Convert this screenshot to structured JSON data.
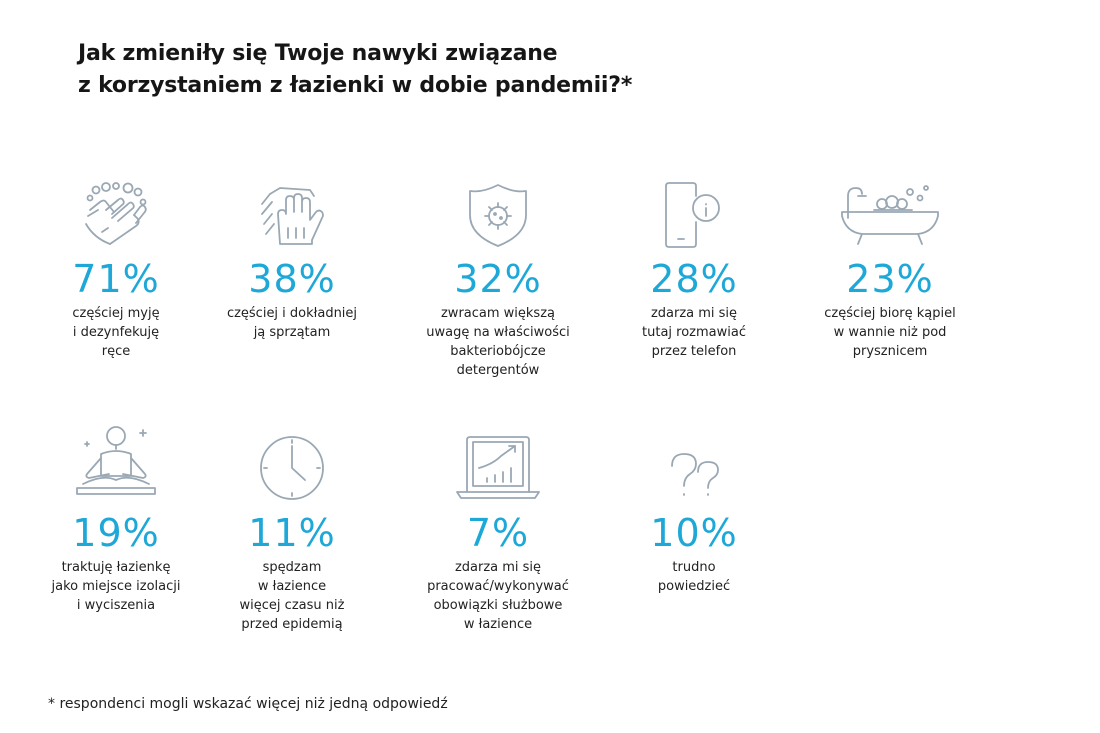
{
  "title": {
    "line1": "Jak zmieniły się Twoje nawyki związane",
    "line2": "z korzystaniem z łazienki w dobie pandemii?*"
  },
  "chart_data": {
    "type": "table",
    "title": "Jak zmieniły się Twoje nawyki związane z korzystaniem z łazienki w dobie pandemii?*",
    "units": "%",
    "items": [
      {
        "icon": "hand-washing-icon",
        "value": "71%",
        "label": [
          "częściej myję",
          "i dezynfekuję",
          "ręce"
        ]
      },
      {
        "icon": "cleaning-glove-icon",
        "value": "38%",
        "label": [
          "częściej i dokładniej",
          "ją sprzątam"
        ]
      },
      {
        "icon": "virus-shield-icon",
        "value": "32%",
        "label": [
          "zwracam większą",
          "uwagę na właściwości",
          "bakteriobójcze",
          "detergentów"
        ]
      },
      {
        "icon": "phone-icon",
        "value": "28%",
        "label": [
          "zdarza mi się",
          "tutaj rozmawiać",
          "przez telefon"
        ]
      },
      {
        "icon": "bathtub-icon",
        "value": "23%",
        "label": [
          "częściej biorę kąpiel",
          "w wannie niż pod",
          "prysznicem"
        ]
      },
      {
        "icon": "meditation-icon",
        "value": "19%",
        "label": [
          "traktuję łazienkę",
          "jako miejsce izolacji",
          "i wyciszenia"
        ]
      },
      {
        "icon": "clock-icon",
        "value": "11%",
        "label": [
          "spędzam",
          "w łazience",
          "więcej czasu niż",
          "przed epidemią"
        ]
      },
      {
        "icon": "laptop-chart-icon",
        "value": "7%",
        "label": [
          "zdarza mi się",
          "pracować/wykonywać",
          "obowiązki służbowe",
          "w łazience"
        ]
      },
      {
        "icon": "question-marks-icon",
        "value": "10%",
        "label": [
          "trudno",
          "powiedzieć"
        ]
      }
    ]
  },
  "footnote": "* respondenci mogli wskazać więcej niż jedną odpowiedź",
  "colors": {
    "accent": "#1ea8d8",
    "icon": "#9aa8b4",
    "text": "#1a1a1a"
  }
}
